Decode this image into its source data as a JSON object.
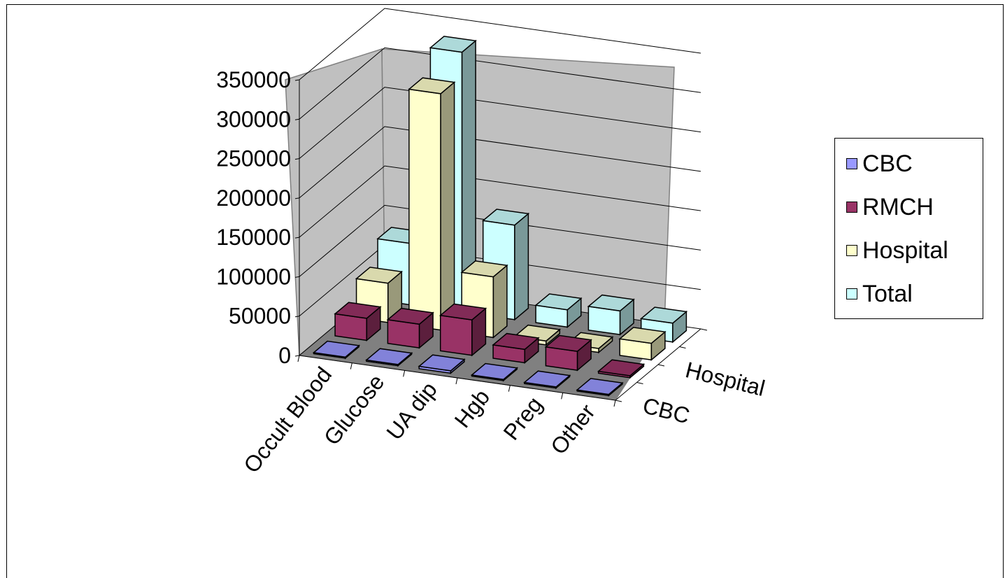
{
  "chart_data": {
    "type": "bar",
    "categories": [
      "Occult Blood",
      "Glucose",
      "UA dip",
      "Hgb",
      "Preg",
      "Other"
    ],
    "depth_labels": [
      "Hospital",
      "CBC"
    ],
    "series": [
      {
        "name": "CBC",
        "color": "#9999ff",
        "values": [
          1500,
          1500,
          3000,
          1500,
          1500,
          1500
        ]
      },
      {
        "name": "RMCH",
        "color": "#993366",
        "values": [
          28000,
          30000,
          45000,
          17000,
          24000,
          2500
        ]
      },
      {
        "name": "Hospital",
        "color": "#ffffcc",
        "values": [
          50000,
          300000,
          77000,
          5000,
          5000,
          21000
        ]
      },
      {
        "name": "Total",
        "color": "#ccffff",
        "values": [
          78000,
          330000,
          120000,
          22000,
          30000,
          24000
        ]
      }
    ],
    "y_ticks": [
      "0",
      "50000",
      "100000",
      "150000",
      "200000",
      "250000",
      "300000",
      "350000"
    ],
    "ylim": [
      0,
      350000
    ],
    "grid": true,
    "legend_position": "right"
  }
}
